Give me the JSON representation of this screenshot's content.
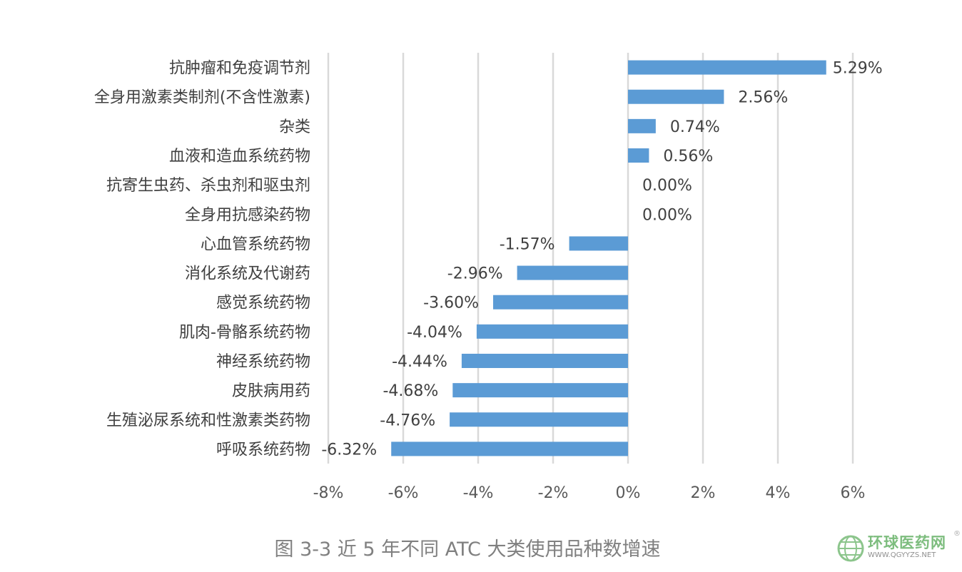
{
  "chart_data": {
    "type": "bar",
    "orientation": "horizontal",
    "title": "图 3-3  近 5 年不同 ATC 大类使用品种数增速",
    "xlabel": "",
    "ylabel": "",
    "xlim": [
      -8,
      6
    ],
    "xticks": [
      -8,
      -6,
      -4,
      -2,
      0,
      2,
      4,
      6
    ],
    "xtick_labels": [
      "-8%",
      "-6%",
      "-4%",
      "-2%",
      "0%",
      "2%",
      "4%",
      "6%"
    ],
    "grid": true,
    "categories": [
      "抗肿瘤和免疫调节剂",
      "全身用激素类制剂(不含性激素)",
      "杂类",
      "血液和造血系统药物",
      "抗寄生虫药、杀虫剂和驱虫剂",
      "全身用抗感染药物",
      "心血管系统药物",
      "消化系统及代谢药",
      "感觉系统药物",
      "肌肉-骨骼系统药物",
      "神经系统药物",
      "皮肤病用药",
      "生殖泌尿系统和性激素类药物",
      "呼吸系统药物"
    ],
    "values": [
      5.29,
      2.56,
      0.74,
      0.56,
      0.0,
      0.0,
      -1.57,
      -2.96,
      -3.6,
      -4.04,
      -4.44,
      -4.68,
      -4.76,
      -6.32
    ],
    "value_labels": [
      "5.29%",
      "2.56%",
      "0.74%",
      "0.56%",
      "0.00%",
      "0.00%",
      "-1.57%",
      "-2.96%",
      "-3.60%",
      "-4.04%",
      "-4.44%",
      "-4.68%",
      "-4.76%",
      "-6.32%"
    ],
    "bar_color": "#5B9BD5",
    "grid_color": "#D9D9D9"
  },
  "watermark": {
    "name": "环球医药网",
    "url": "WWW.QGYYZS.NET",
    "reg": "®"
  }
}
